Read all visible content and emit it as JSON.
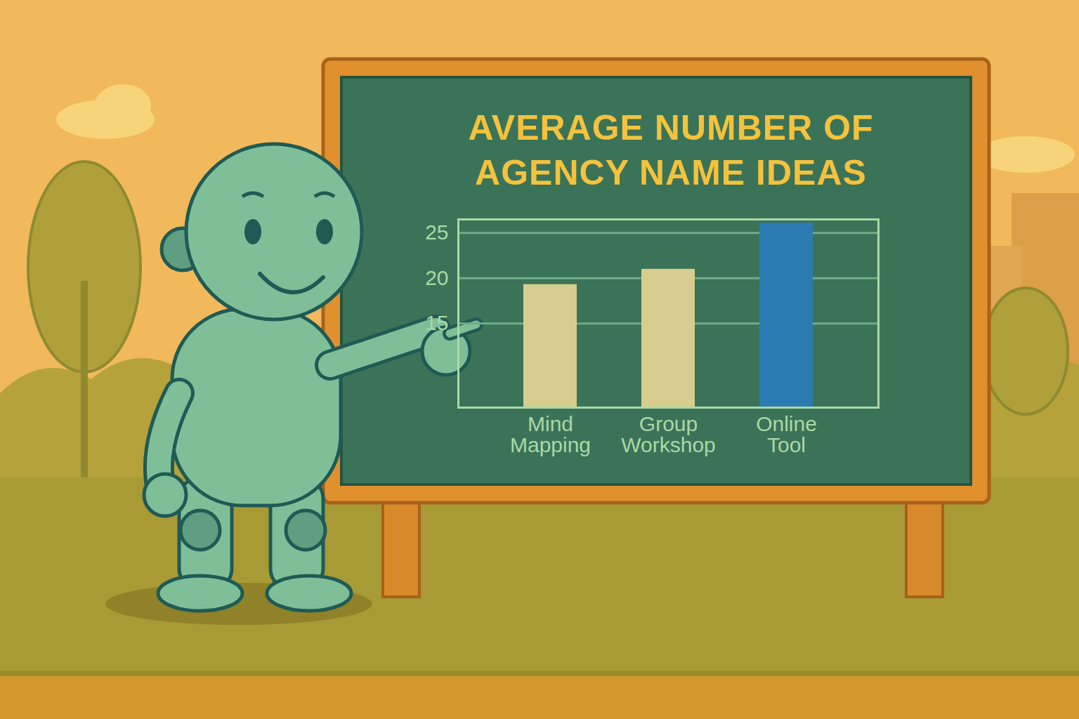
{
  "chart_data": {
    "type": "bar",
    "title": "AVERAGE NUMBER OF AGENCY NAME IDEAS",
    "categories": [
      "Mind Mapping",
      "Group Workshop",
      "Online Tool"
    ],
    "values": [
      19.3,
      21,
      26.1
    ],
    "colors": [
      "#d8cd8f",
      "#d8cd8f",
      "#2b7bb3"
    ],
    "ylim": [
      5.7,
      26.5
    ],
    "yticks": [
      15,
      20,
      25
    ],
    "grid": true
  }
}
